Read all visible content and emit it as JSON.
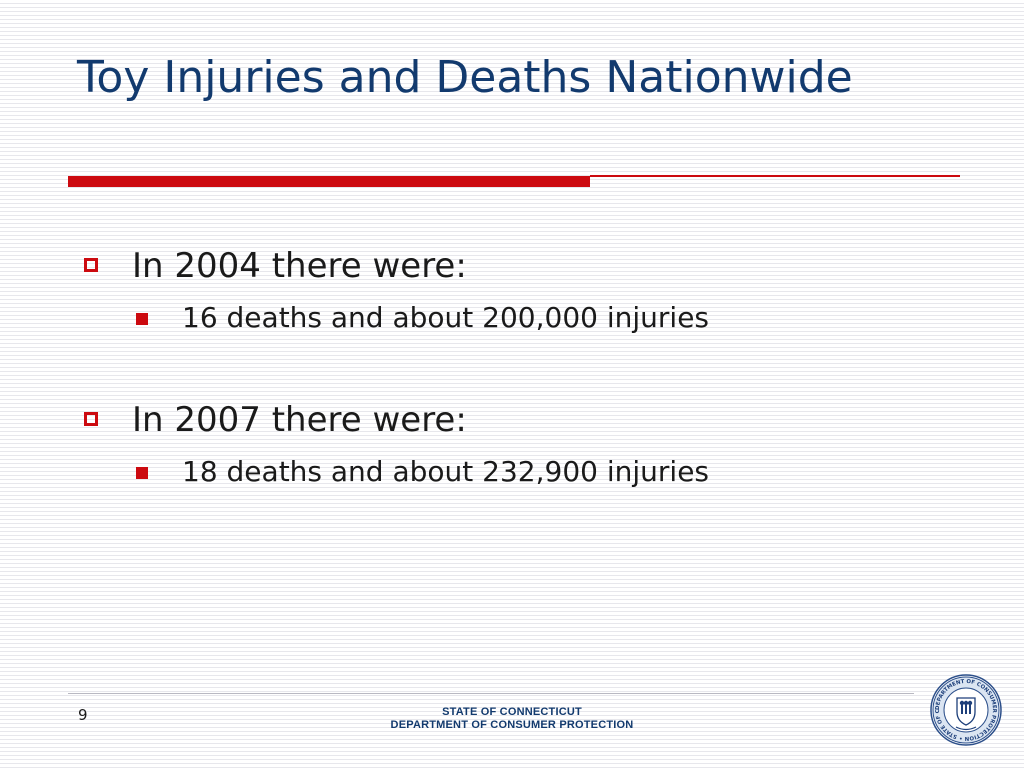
{
  "slide": {
    "title": "Toy Injuries and Deaths Nationwide",
    "bullets": [
      {
        "text": "In 2004 there were:",
        "subbullets": [
          "16 deaths and about 200,000 injuries"
        ]
      },
      {
        "text": "In 2007 there were:",
        "subbullets": [
          "18 deaths and about 232,900 injuries"
        ]
      }
    ]
  },
  "footer": {
    "page_number": "9",
    "org_line_1": "STATE OF CONNECTICUT",
    "org_line_2": "DEPARTMENT OF CONSUMER PROTECTION",
    "seal_text": "DEPARTMENT OF CONSUMER PROTECTION • STATE OF CONNECTICUT"
  },
  "colors": {
    "title": "#123a6e",
    "accent": "#cc0a10",
    "body_text": "#1a1a1a"
  },
  "icons": {
    "level1_bullet": "hollow-square-icon",
    "level2_bullet": "filled-square-icon",
    "seal": "connecticut-seal-logo"
  }
}
